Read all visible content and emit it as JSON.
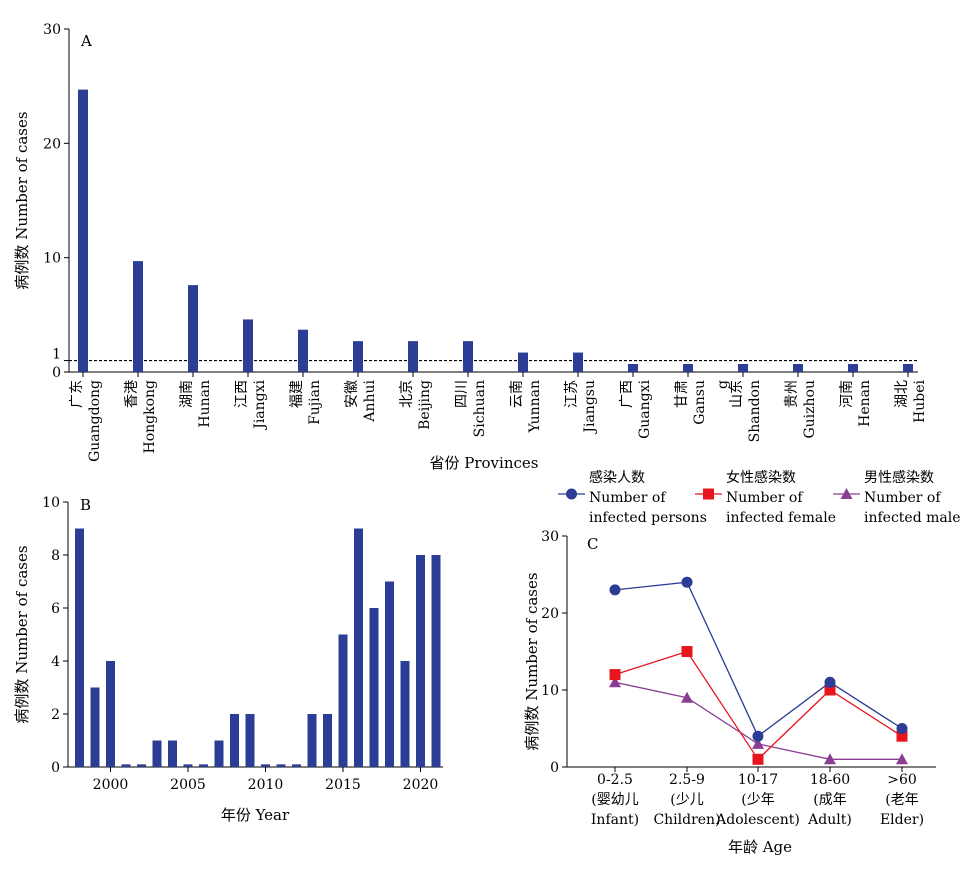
{
  "colors": {
    "bar": "#2b3d94",
    "persons": "#2b3d94",
    "female": "#e8141e",
    "male": "#8b3c93"
  },
  "chart_data": [
    {
      "type": "bar",
      "panel": "A",
      "title": "",
      "xlabel": "省份 Provinces",
      "ylabel": "病例数 Number of cases",
      "ylim": [
        0,
        30
      ],
      "yticks": [
        "0",
        "1",
        "10",
        "20",
        "30"
      ],
      "reference_line": {
        "value": 1,
        "style": "dashed"
      },
      "categories": [
        {
          "cn": "广东",
          "en": "Guangdong"
        },
        {
          "cn": "香港",
          "en": "Hongkong"
        },
        {
          "cn": "湖南",
          "en": "Hunan"
        },
        {
          "cn": "江西",
          "en": "Jiangxi"
        },
        {
          "cn": "福建",
          "en": "Fujian"
        },
        {
          "cn": "安徽",
          "en": "Anhui"
        },
        {
          "cn": "北京",
          "en": "Beijing"
        },
        {
          "cn": "四川",
          "en": "Sichuan"
        },
        {
          "cn": "云南",
          "en": "Yunnan"
        },
        {
          "cn": "江苏",
          "en": "Jiangsu"
        },
        {
          "cn": "广西",
          "en": "Guangxi"
        },
        {
          "cn": "甘肃",
          "en": "Gansu"
        },
        {
          "cn": "山东",
          "en": "Shandon",
          "extra": "g"
        },
        {
          "cn": "贵州",
          "en": "Guizhou"
        },
        {
          "cn": "河南",
          "en": "Henan"
        },
        {
          "cn": "湖北",
          "en": "Hubei"
        }
      ],
      "values": [
        24.7,
        9.7,
        7.6,
        4.6,
        3.7,
        2.7,
        2.7,
        2.7,
        1.7,
        1.7,
        0.7,
        0.7,
        0.7,
        0.7,
        0.7,
        0.7
      ]
    },
    {
      "type": "bar",
      "panel": "B",
      "title": "",
      "xlabel": "年份 Year",
      "ylabel": "病例数 Number of cases",
      "ylim": [
        0,
        10
      ],
      "yticks": [
        "0",
        "2",
        "4",
        "6",
        "8",
        "10"
      ],
      "xticks": [
        "2000",
        "2005",
        "2010",
        "2015",
        "2020"
      ],
      "x": [
        1998,
        1999,
        2000,
        2001,
        2002,
        2003,
        2004,
        2005,
        2006,
        2007,
        2008,
        2009,
        2010,
        2011,
        2012,
        2013,
        2014,
        2015,
        2016,
        2017,
        2018,
        2019,
        2020,
        2021
      ],
      "values": [
        9,
        3,
        4,
        0.1,
        0.1,
        1,
        1,
        0.1,
        0.1,
        1,
        2,
        2,
        0.1,
        0.1,
        0.1,
        2,
        2,
        5,
        9,
        6,
        7,
        4,
        8,
        8
      ]
    },
    {
      "type": "line",
      "panel": "C",
      "title": "",
      "xlabel": "年龄 Age",
      "ylabel": "病例数 Number of cases",
      "ylim": [
        0,
        30
      ],
      "yticks": [
        "0",
        "10",
        "20",
        "30"
      ],
      "categories": [
        {
          "l1": "0-2.5",
          "l2": "(婴幼儿",
          "l3": "Infant)"
        },
        {
          "l1": "2.5-9",
          "l2": "(少儿",
          "l3": "Children)"
        },
        {
          "l1": "10-17",
          "l2": "(少年",
          "l3": "Adolescent)"
        },
        {
          "l1": "18-60",
          "l2": "(成年",
          "l3": "Adult)"
        },
        {
          "l1": ">60",
          "l2": "(老年",
          "l3": "Elder)"
        }
      ],
      "series": [
        {
          "key": "persons",
          "marker": "circle",
          "cn": "感染人数",
          "en1": "Number of",
          "en2": "infected persons",
          "values": [
            23,
            24,
            4,
            11,
            5
          ]
        },
        {
          "key": "female",
          "marker": "square",
          "cn": "女性感染数",
          "en1": "Number of",
          "en2": "infected female",
          "values": [
            12,
            15,
            1,
            10,
            4
          ]
        },
        {
          "key": "male",
          "marker": "triangle",
          "cn": "男性感染数",
          "en1": "Number of",
          "en2": "infected male",
          "values": [
            11,
            9,
            3,
            1,
            1
          ]
        }
      ]
    }
  ]
}
